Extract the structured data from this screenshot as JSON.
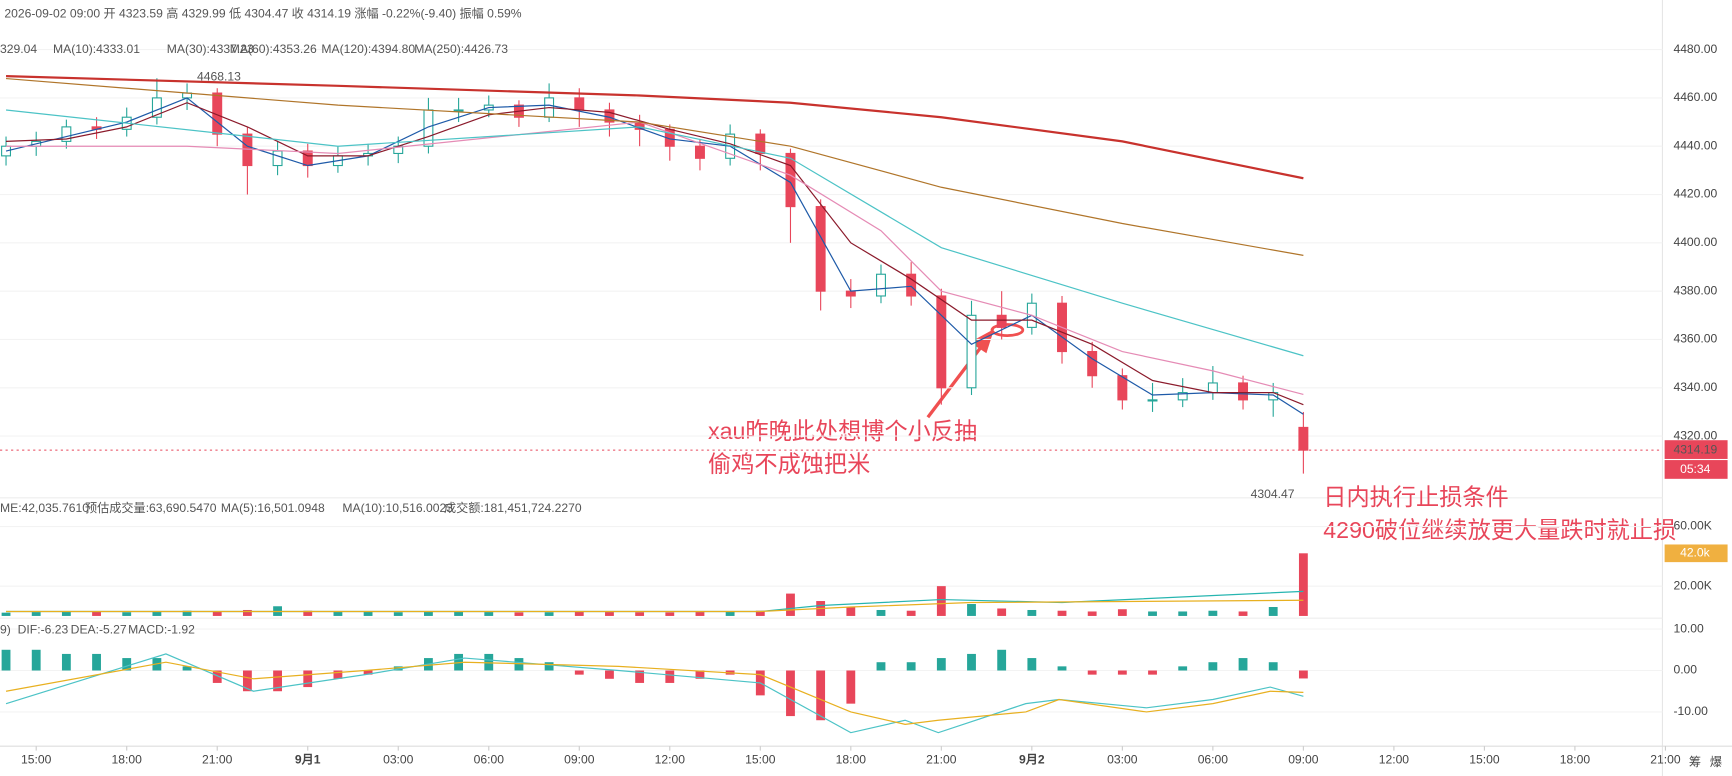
{
  "header": {
    "text": "2026-09-02 09:00 开 4323.59 高 4329.99 低 4304.47 收 4314.19 涨幅 -0.22%(-9.40) 振幅 0.59%"
  },
  "legends": {
    "price": [
      "329.04",
      "MA(10):4333.01",
      "MA(30):4337.23",
      "MA(60):4353.26",
      "MA(120):4394.80",
      "MA(250):4426.73"
    ],
    "volume": [
      "ME:42,035.7610",
      "预估成交量:63,690.5470",
      "MA(5):16,501.0948",
      "MA(10):10,516.0023",
      "成交额:181,451,724.2270"
    ],
    "macd": [
      "9)",
      "DIF:-6.23",
      "DEA:-5.27",
      "MACD:-1.92"
    ]
  },
  "annotations": [
    "xau昨晚此处想博个小反抽",
    "偷鸡不成蚀把米",
    "日内执行止损条件",
    "4290破位继续放更大量跌时就止损"
  ],
  "side_icons": [
    "筹",
    "爆"
  ],
  "chart_data": [
    {
      "type": "candlestick",
      "xlim": [
        -1.2,
        53.9
      ],
      "ylim": [
        4294.9,
        4489.1
      ],
      "yticks": [
        {
          "value": 4480,
          "label": "4480.00"
        },
        {
          "value": 4460,
          "label": "4460.00"
        },
        {
          "value": 4440,
          "label": "4440.00"
        },
        {
          "value": 4420,
          "label": "4420.00"
        },
        {
          "value": 4400,
          "label": "4400.00"
        },
        {
          "value": 4380,
          "label": "4380.00"
        },
        {
          "value": 4360,
          "label": "4360.00"
        },
        {
          "value": 4340,
          "label": "4340.00"
        },
        {
          "value": 4320,
          "label": "4320.00"
        }
      ],
      "up_color": "#26a69a",
      "down_color": "#e8465a",
      "x": [
        -1,
        0,
        1,
        2,
        3,
        4,
        5,
        6,
        7,
        8,
        9,
        10,
        11,
        12,
        13,
        14,
        15,
        16,
        17,
        18,
        19,
        20,
        21,
        22,
        23,
        24,
        25,
        26,
        27,
        28,
        29,
        30,
        31,
        32,
        33,
        34,
        35,
        36,
        37,
        38,
        39,
        40,
        41,
        42
      ],
      "ohlc": [
        [
          4436,
          4444,
          4432,
          4440
        ],
        [
          4440,
          4446,
          4436,
          4442
        ],
        [
          4442,
          4451,
          4439,
          4448
        ],
        [
          4448,
          4452,
          4443,
          4447
        ],
        [
          4447,
          4456,
          4444,
          4452
        ],
        [
          4452,
          4468.13,
          4449,
          4460
        ],
        [
          4460,
          4466,
          4455,
          4462
        ],
        [
          4462,
          4464,
          4440,
          4445
        ],
        [
          4445,
          4448,
          4420,
          4432
        ],
        [
          4432,
          4442,
          4428,
          4438
        ],
        [
          4438,
          4441,
          4427,
          4432
        ],
        [
          4432,
          4440,
          4429,
          4436
        ],
        [
          4436,
          4441,
          4432,
          4437
        ],
        [
          4437,
          4444,
          4433,
          4440
        ],
        [
          4440,
          4460,
          4437,
          4455
        ],
        [
          4455,
          4460,
          4450,
          4455
        ],
        [
          4455,
          4461,
          4452,
          4457
        ],
        [
          4457,
          4459,
          4448,
          4452
        ],
        [
          4452,
          4466,
          4450,
          4460
        ],
        [
          4460,
          4464,
          4448,
          4455
        ],
        [
          4455,
          4458,
          4444,
          4450
        ],
        [
          4450,
          4453,
          4440,
          4447
        ],
        [
          4447,
          4449,
          4434,
          4440
        ],
        [
          4440,
          4443,
          4430,
          4435
        ],
        [
          4435,
          4449,
          4432,
          4445
        ],
        [
          4445,
          4447,
          4430,
          4437
        ],
        [
          4437,
          4439,
          4400,
          4415
        ],
        [
          4415,
          4418,
          4372,
          4380
        ],
        [
          4380,
          4385,
          4373,
          4378
        ],
        [
          4378,
          4391,
          4375,
          4387
        ],
        [
          4387,
          4392,
          4374,
          4378
        ],
        [
          4378,
          4381,
          4333,
          4340
        ],
        [
          4340,
          4376,
          4337,
          4370
        ],
        [
          4370,
          4380,
          4360,
          4365
        ],
        [
          4365,
          4379,
          4362,
          4375
        ],
        [
          4375,
          4378,
          4350,
          4355
        ],
        [
          4355,
          4359,
          4340,
          4345
        ],
        [
          4345,
          4348,
          4331,
          4335
        ],
        [
          4335,
          4342,
          4330,
          4335
        ],
        [
          4335,
          4344,
          4332,
          4338
        ],
        [
          4338,
          4349,
          4335,
          4342
        ],
        [
          4342,
          4345,
          4331,
          4335
        ],
        [
          4335,
          4342,
          4328,
          4338
        ],
        [
          4323.59,
          4329.99,
          4304.47,
          4314.19
        ]
      ],
      "series": [
        {
          "name": "MA(5)",
          "color": "#1e5aa8",
          "x": [
            -1,
            1,
            3,
            5,
            7,
            9,
            11,
            13,
            15,
            17,
            19,
            21,
            23,
            25,
            27,
            29,
            31,
            33,
            35,
            37,
            39,
            41,
            42
          ],
          "values": [
            4438,
            4444,
            4450,
            4460,
            4440,
            4432,
            4436,
            4448,
            4456,
            4457,
            4452,
            4443,
            4440,
            4425,
            4380,
            4382,
            4358,
            4370,
            4352,
            4337,
            4338,
            4337,
            4329.04
          ]
        },
        {
          "name": "MA(10)",
          "color": "#8b1a2b",
          "x": [
            -1,
            1,
            3,
            5,
            7,
            9,
            11,
            13,
            15,
            17,
            19,
            21,
            23,
            25,
            27,
            29,
            31,
            33,
            35,
            37,
            39,
            41,
            42
          ],
          "values": [
            4442,
            4443,
            4448,
            4458,
            4448,
            4436,
            4436,
            4444,
            4453,
            4456,
            4454,
            4447,
            4441,
            4432,
            4400,
            4385,
            4368,
            4368,
            4358,
            4343,
            4338,
            4338,
            4333.01
          ]
        },
        {
          "name": "MA(30)",
          "color": "#e58bb5",
          "x": [
            -1,
            5,
            10,
            20,
            25,
            28,
            30,
            33,
            36,
            39,
            42
          ],
          "values": [
            4440,
            4440,
            4437,
            4450,
            4428,
            4405,
            4380,
            4370,
            4355,
            4347,
            4337.23
          ]
        },
        {
          "name": "MA(60)",
          "color": "#4cc3c6",
          "x": [
            -1,
            10,
            20,
            25,
            30,
            36,
            42
          ],
          "values": [
            4455,
            4440,
            4448,
            4435,
            4398,
            4375,
            4353.26
          ]
        },
        {
          "name": "MA(120)",
          "color": "#b0752a",
          "x": [
            -1,
            10,
            20,
            25,
            30,
            36,
            42
          ],
          "values": [
            4468,
            4457,
            4450,
            4440,
            4423,
            4408,
            4394.8
          ]
        },
        {
          "name": "MA(250)",
          "color": "#c8322d",
          "x": [
            -1,
            10,
            20,
            25,
            30,
            36,
            42
          ],
          "values": [
            4469,
            4465,
            4461,
            4458,
            4452,
            4442,
            4426.73
          ]
        }
      ],
      "high_marker": {
        "value": 4468.13,
        "x": 5
      },
      "low_marker": {
        "value": 4304.47,
        "x": 42
      },
      "last_price": 4314.19,
      "countdown": "05:34"
    },
    {
      "type": "volume",
      "xlim": [
        -1.2,
        53.9
      ],
      "ylim": [
        0,
        65185
      ],
      "yticks": [
        {
          "value": 20000,
          "label": "20.00K"
        },
        {
          "value": 60000,
          "label": "60.00K"
        }
      ],
      "values": [
        2200,
        2600,
        3000,
        2800,
        2500,
        3200,
        3500,
        3000,
        4000,
        6500,
        3500,
        3000,
        2800,
        2500,
        2700,
        3000,
        2600,
        2400,
        2500,
        2800,
        2600,
        2500,
        2400,
        2600,
        2700,
        3500,
        15000,
        10000,
        6000,
        4000,
        3500,
        20000,
        8000,
        5000,
        4000,
        3500,
        3000,
        4500,
        3000,
        3000,
        3500,
        3000,
        6000,
        42035.761
      ],
      "series": [
        {
          "name": "MA(5)",
          "color": "#26b5b0",
          "x": [
            -1,
            10,
            24,
            26,
            30,
            34,
            42
          ],
          "values": [
            3000,
            3000,
            3000,
            7000,
            11000,
            9000,
            16501.0948
          ]
        },
        {
          "name": "MA(10)",
          "color": "#e8b020",
          "x": [
            -1,
            24,
            27,
            31,
            42
          ],
          "values": [
            3000,
            3000,
            6000,
            9000,
            10516.0023
          ]
        }
      ],
      "current_tag": {
        "value": 42035.761,
        "label": "42.0k"
      }
    },
    {
      "type": "macd",
      "xlim": [
        -1.2,
        53.9
      ],
      "ylim": [
        -18,
        12.1
      ],
      "yticks": [
        {
          "value": 10,
          "label": "10.00"
        },
        {
          "value": 0,
          "label": "0.00"
        },
        {
          "value": -10,
          "label": "-10.00"
        }
      ],
      "values": [
        5,
        5,
        4,
        4,
        3,
        3,
        1,
        -3,
        -5,
        -5,
        -4,
        -2,
        -1,
        1,
        3,
        4,
        4,
        3,
        2,
        -1,
        -2,
        -3,
        -3,
        -2,
        -1,
        -6,
        -11,
        -12,
        -8,
        2,
        2,
        3,
        4,
        5,
        3,
        1,
        -1,
        -1,
        -1,
        1,
        2,
        3,
        2,
        -1.92
      ],
      "series": [
        {
          "name": "DIF",
          "color": "#4cc3c6",
          "x": [
            -1,
            4.3,
            7.2,
            10.9,
            14.2,
            19.3,
            24,
            27,
            28.8,
            29.9,
            32.8,
            33.9,
            36.8,
            39,
            40.9,
            42
          ],
          "values": [
            -8,
            4,
            -5,
            -1,
            3,
            0,
            -3,
            -15,
            -12,
            -15,
            -8,
            -7,
            -9,
            -7,
            -4,
            -6.23
          ]
        },
        {
          "name": "DEA",
          "color": "#e8b020",
          "x": [
            -1,
            4.3,
            7.2,
            10.9,
            14.2,
            19.3,
            24,
            27,
            28.8,
            29.9,
            32.8,
            33.9,
            36.8,
            39,
            40.9,
            42
          ],
          "values": [
            -5,
            2,
            -2,
            0,
            2,
            1,
            -1,
            -10,
            -13,
            -12,
            -10,
            -7,
            -10,
            -8,
            -5,
            -5.27
          ]
        }
      ],
      "xticks": [
        {
          "value": 0,
          "label": "15:00"
        },
        {
          "value": 3,
          "label": "18:00"
        },
        {
          "value": 6,
          "label": "21:00"
        },
        {
          "value": 9,
          "label": "9月1"
        },
        {
          "value": 12,
          "label": "03:00"
        },
        {
          "value": 15,
          "label": "06:00"
        },
        {
          "value": 18,
          "label": "09:00"
        },
        {
          "value": 21,
          "label": "12:00"
        },
        {
          "value": 24,
          "label": "15:00"
        },
        {
          "value": 27,
          "label": "18:00"
        },
        {
          "value": 30,
          "label": "21:00"
        },
        {
          "value": 33,
          "label": "9月2"
        },
        {
          "value": 36,
          "label": "03:00"
        },
        {
          "value": 39,
          "label": "06:00"
        },
        {
          "value": 42,
          "label": "09:00"
        },
        {
          "value": 45,
          "label": "12:00"
        },
        {
          "value": 48,
          "label": "15:00"
        },
        {
          "value": 51,
          "label": "18:00"
        },
        {
          "value": 54,
          "label": "21:00"
        }
      ]
    }
  ]
}
